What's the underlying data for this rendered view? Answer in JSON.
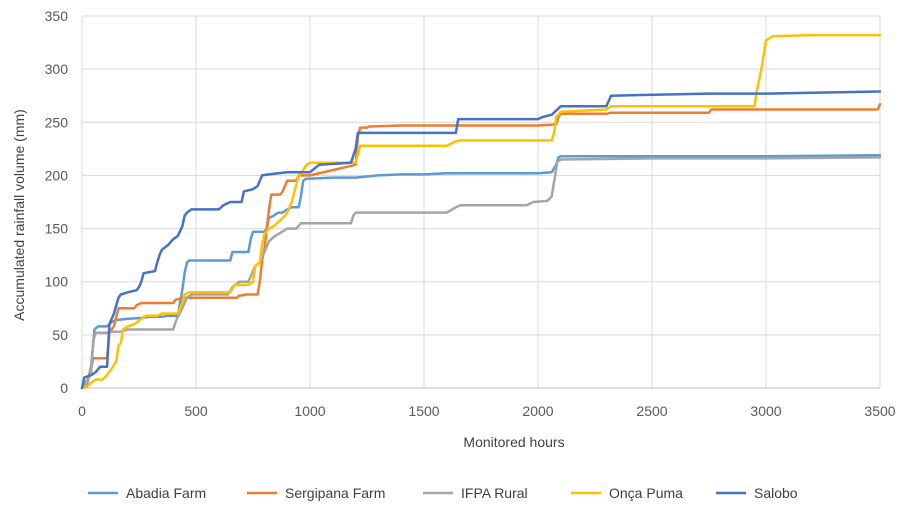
{
  "chart_data": {
    "type": "line",
    "xlabel": "Monitored hours",
    "ylabel": "Accumulated rainfall volume (mm)",
    "xlim": [
      0,
      3500
    ],
    "ylim": [
      0,
      350
    ],
    "xticks": [
      0,
      500,
      1000,
      1500,
      2000,
      2500,
      3000,
      3500
    ],
    "yticks": [
      0,
      50,
      100,
      150,
      200,
      250,
      300,
      350
    ],
    "grid": true,
    "legend_position": "bottom",
    "series": [
      {
        "name": "Abadia Farm",
        "color": "#5b9bd5",
        "points": [
          [
            0,
            0
          ],
          [
            20,
            2
          ],
          [
            40,
            20
          ],
          [
            55,
            55
          ],
          [
            70,
            58
          ],
          [
            110,
            58
          ],
          [
            130,
            62
          ],
          [
            150,
            64
          ],
          [
            200,
            65
          ],
          [
            260,
            66
          ],
          [
            300,
            67
          ],
          [
            350,
            67
          ],
          [
            380,
            68
          ],
          [
            420,
            68
          ],
          [
            430,
            80
          ],
          [
            440,
            92
          ],
          [
            450,
            108
          ],
          [
            460,
            118
          ],
          [
            470,
            120
          ],
          [
            650,
            120
          ],
          [
            660,
            128
          ],
          [
            730,
            128
          ],
          [
            740,
            140
          ],
          [
            750,
            147
          ],
          [
            800,
            147
          ],
          [
            810,
            150
          ],
          [
            820,
            160
          ],
          [
            840,
            162
          ],
          [
            860,
            165
          ],
          [
            880,
            165
          ],
          [
            900,
            168
          ],
          [
            920,
            170
          ],
          [
            950,
            170
          ],
          [
            960,
            180
          ],
          [
            970,
            195
          ],
          [
            985,
            197
          ],
          [
            1000,
            197
          ],
          [
            1100,
            198
          ],
          [
            1200,
            198
          ],
          [
            1300,
            200
          ],
          [
            1400,
            201
          ],
          [
            1500,
            201
          ],
          [
            1600,
            202
          ],
          [
            1700,
            202
          ],
          [
            1800,
            202
          ],
          [
            1900,
            202
          ],
          [
            2000,
            202
          ],
          [
            2060,
            203
          ],
          [
            2080,
            210
          ],
          [
            2090,
            217
          ],
          [
            2100,
            218
          ],
          [
            2500,
            218
          ],
          [
            3000,
            218
          ],
          [
            3500,
            219
          ]
        ]
      },
      {
        "name": "Sergipana Farm",
        "color": "#ed7d31",
        "points": [
          [
            0,
            0
          ],
          [
            30,
            10
          ],
          [
            50,
            28
          ],
          [
            110,
            28
          ],
          [
            120,
            52
          ],
          [
            140,
            58
          ],
          [
            150,
            67
          ],
          [
            160,
            75
          ],
          [
            230,
            75
          ],
          [
            240,
            78
          ],
          [
            260,
            80
          ],
          [
            400,
            80
          ],
          [
            410,
            83
          ],
          [
            430,
            84
          ],
          [
            440,
            85
          ],
          [
            680,
            85
          ],
          [
            690,
            87
          ],
          [
            700,
            87
          ],
          [
            720,
            88
          ],
          [
            770,
            88
          ],
          [
            780,
            100
          ],
          [
            790,
            120
          ],
          [
            800,
            130
          ],
          [
            810,
            150
          ],
          [
            820,
            168
          ],
          [
            830,
            182
          ],
          [
            870,
            182
          ],
          [
            880,
            185
          ],
          [
            900,
            195
          ],
          [
            940,
            195
          ],
          [
            950,
            200
          ],
          [
            1000,
            200
          ],
          [
            1200,
            210
          ],
          [
            1210,
            237
          ],
          [
            1220,
            245
          ],
          [
            1250,
            245
          ],
          [
            1260,
            246
          ],
          [
            1400,
            247
          ],
          [
            1800,
            247
          ],
          [
            2000,
            247
          ],
          [
            2080,
            248
          ],
          [
            2090,
            255
          ],
          [
            2100,
            258
          ],
          [
            2300,
            258
          ],
          [
            2320,
            259
          ],
          [
            2750,
            259
          ],
          [
            2760,
            262
          ],
          [
            3490,
            262
          ],
          [
            3500,
            267
          ]
        ]
      },
      {
        "name": "IFPA Rural",
        "color": "#a5a5a5",
        "points": [
          [
            0,
            0
          ],
          [
            20,
            5
          ],
          [
            40,
            15
          ],
          [
            50,
            45
          ],
          [
            60,
            52
          ],
          [
            110,
            52
          ],
          [
            130,
            53
          ],
          [
            170,
            53
          ],
          [
            200,
            55
          ],
          [
            400,
            55
          ],
          [
            410,
            62
          ],
          [
            420,
            67
          ],
          [
            440,
            75
          ],
          [
            460,
            85
          ],
          [
            480,
            88
          ],
          [
            640,
            88
          ],
          [
            660,
            95
          ],
          [
            690,
            100
          ],
          [
            730,
            100
          ],
          [
            760,
            115
          ],
          [
            780,
            118
          ],
          [
            800,
            128
          ],
          [
            820,
            138
          ],
          [
            840,
            142
          ],
          [
            870,
            146
          ],
          [
            900,
            150
          ],
          [
            940,
            150
          ],
          [
            960,
            155
          ],
          [
            1000,
            155
          ],
          [
            1180,
            155
          ],
          [
            1190,
            162
          ],
          [
            1200,
            165
          ],
          [
            1600,
            165
          ],
          [
            1640,
            170
          ],
          [
            1660,
            172
          ],
          [
            1950,
            172
          ],
          [
            1980,
            175
          ],
          [
            2040,
            176
          ],
          [
            2060,
            180
          ],
          [
            2075,
            200
          ],
          [
            2085,
            213
          ],
          [
            2100,
            215
          ],
          [
            2500,
            216
          ],
          [
            3000,
            216
          ],
          [
            3500,
            217
          ]
        ]
      },
      {
        "name": "Onça Puma",
        "color": "#ffc000",
        "points": [
          [
            0,
            0
          ],
          [
            20,
            1
          ],
          [
            40,
            5
          ],
          [
            60,
            8
          ],
          [
            90,
            8
          ],
          [
            100,
            10
          ],
          [
            130,
            18
          ],
          [
            150,
            25
          ],
          [
            160,
            40
          ],
          [
            170,
            42
          ],
          [
            180,
            55
          ],
          [
            200,
            58
          ],
          [
            230,
            60
          ],
          [
            260,
            65
          ],
          [
            280,
            68
          ],
          [
            330,
            68
          ],
          [
            350,
            70
          ],
          [
            420,
            70
          ],
          [
            440,
            80
          ],
          [
            450,
            88
          ],
          [
            470,
            90
          ],
          [
            650,
            90
          ],
          [
            670,
            97
          ],
          [
            700,
            97
          ],
          [
            730,
            97
          ],
          [
            750,
            100
          ],
          [
            760,
            115
          ],
          [
            780,
            118
          ],
          [
            790,
            135
          ],
          [
            800,
            145
          ],
          [
            820,
            150
          ],
          [
            840,
            152
          ],
          [
            870,
            158
          ],
          [
            890,
            162
          ],
          [
            900,
            165
          ],
          [
            920,
            175
          ],
          [
            950,
            200
          ],
          [
            970,
            205
          ],
          [
            985,
            210
          ],
          [
            1000,
            212
          ],
          [
            1040,
            212
          ],
          [
            1180,
            212
          ],
          [
            1200,
            212
          ],
          [
            1210,
            220
          ],
          [
            1220,
            228
          ],
          [
            1400,
            228
          ],
          [
            1600,
            228
          ],
          [
            1640,
            232
          ],
          [
            1660,
            233
          ],
          [
            2000,
            233
          ],
          [
            2060,
            233
          ],
          [
            2070,
            240
          ],
          [
            2080,
            255
          ],
          [
            2100,
            260
          ],
          [
            2300,
            262
          ],
          [
            2320,
            265
          ],
          [
            2950,
            265
          ],
          [
            2960,
            280
          ],
          [
            2980,
            300
          ],
          [
            3000,
            327
          ],
          [
            3030,
            331
          ],
          [
            3200,
            332
          ],
          [
            3500,
            332
          ]
        ]
      },
      {
        "name": "Salobo",
        "color": "#4472c4",
        "points": [
          [
            0,
            0
          ],
          [
            10,
            10
          ],
          [
            40,
            12
          ],
          [
            60,
            15
          ],
          [
            80,
            20
          ],
          [
            110,
            20
          ],
          [
            120,
            60
          ],
          [
            140,
            70
          ],
          [
            160,
            85
          ],
          [
            170,
            88
          ],
          [
            200,
            90
          ],
          [
            240,
            92
          ],
          [
            250,
            95
          ],
          [
            260,
            100
          ],
          [
            270,
            108
          ],
          [
            320,
            110
          ],
          [
            330,
            118
          ],
          [
            340,
            125
          ],
          [
            350,
            130
          ],
          [
            380,
            135
          ],
          [
            400,
            140
          ],
          [
            420,
            143
          ],
          [
            440,
            152
          ],
          [
            450,
            162
          ],
          [
            460,
            165
          ],
          [
            480,
            168
          ],
          [
            600,
            168
          ],
          [
            620,
            172
          ],
          [
            650,
            175
          ],
          [
            700,
            175
          ],
          [
            710,
            185
          ],
          [
            730,
            186
          ],
          [
            750,
            187
          ],
          [
            770,
            190
          ],
          [
            780,
            195
          ],
          [
            790,
            200
          ],
          [
            820,
            201
          ],
          [
            860,
            202
          ],
          [
            900,
            203
          ],
          [
            960,
            203
          ],
          [
            1000,
            203
          ],
          [
            1040,
            210
          ],
          [
            1180,
            212
          ],
          [
            1200,
            225
          ],
          [
            1210,
            240
          ],
          [
            1400,
            240
          ],
          [
            1640,
            240
          ],
          [
            1650,
            253
          ],
          [
            1800,
            253
          ],
          [
            2000,
            253
          ],
          [
            2020,
            255
          ],
          [
            2060,
            257
          ],
          [
            2100,
            265
          ],
          [
            2300,
            265
          ],
          [
            2320,
            275
          ],
          [
            2750,
            277
          ],
          [
            3000,
            277
          ],
          [
            3500,
            279
          ]
        ]
      }
    ]
  }
}
